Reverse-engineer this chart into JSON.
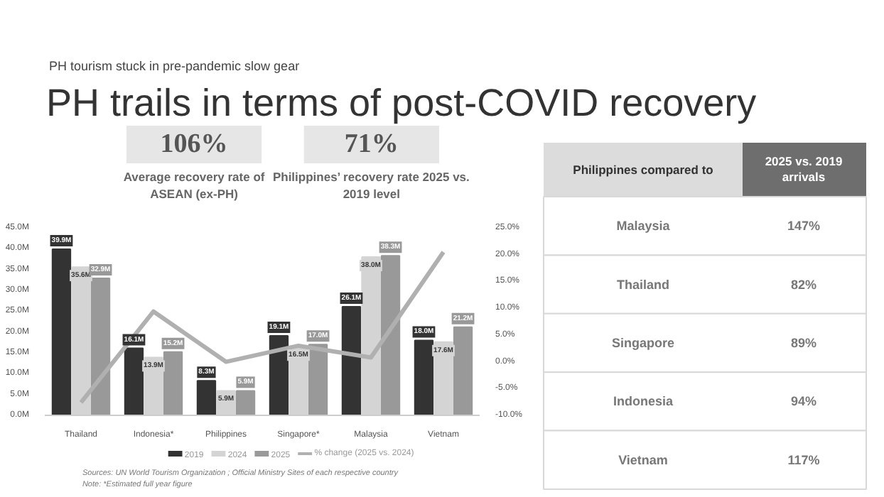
{
  "chart_data": [
    {
      "type": "other",
      "subtitle": "PH tourism stuck in pre-pandemic slow gear",
      "title": "PH trails in terms of post-COVID recovery",
      "annotations": [
        "106%",
        "Average recovery rate of ASEAN (ex-PH)",
        "71%",
        "Philippines’ recovery rate 2025 vs. 2019 level"
      ]
    },
    {
      "type": "bar",
      "categories": [
        "Thailand",
        "Indonesia*",
        "Philippines",
        "Singapore*",
        "Malaysia",
        "Vietnam"
      ],
      "series": [
        {
          "name": "2019",
          "color": "#333333",
          "values": [
            39.9,
            16.1,
            8.3,
            19.1,
            26.1,
            18.0
          ],
          "value_labels": [
            "39.9M",
            "16.1M",
            "8.3M",
            "19.1M",
            "26.1M",
            "18.0M"
          ]
        },
        {
          "name": "2024",
          "color": "#d4d4d4",
          "values": [
            35.6,
            13.9,
            5.9,
            16.5,
            38.0,
            17.6
          ],
          "value_labels": [
            "35.6M",
            "13.9M",
            "5.9M",
            "16.5M",
            "38.0M",
            "17.6M"
          ]
        },
        {
          "name": "2025",
          "color": "#999999",
          "values": [
            32.9,
            15.2,
            5.9,
            17.0,
            38.3,
            21.2
          ],
          "value_labels": [
            "32.9M",
            "15.2M",
            "5.9M",
            "17.0M",
            "38.3M",
            "21.2M"
          ]
        },
        {
          "name": "% change (2025 vs. 2024)",
          "type": "line",
          "axis": "y2",
          "color": "#b0b0b0",
          "values": [
            -7.6,
            9.4,
            0.0,
            3.0,
            0.8,
            20.5
          ]
        }
      ],
      "ylim": [
        0,
        45
      ],
      "yticks": [
        {
          "value": 0,
          "label": "0.0M"
        },
        {
          "value": 5,
          "label": "5.0M"
        },
        {
          "value": 10,
          "label": "10.0M"
        },
        {
          "value": 15,
          "label": "15.0M"
        },
        {
          "value": 20,
          "label": "20.0M"
        },
        {
          "value": 25,
          "label": "25.0M"
        },
        {
          "value": 30,
          "label": "30.0M"
        },
        {
          "value": 35,
          "label": "35.0M"
        },
        {
          "value": 40,
          "label": "40.0M"
        },
        {
          "value": 45,
          "label": "45.0M"
        }
      ],
      "y2lim": [
        -10,
        25
      ],
      "y2ticks": [
        {
          "value": -10,
          "label": "-10.0%"
        },
        {
          "value": -5,
          "label": "-5.0%"
        },
        {
          "value": 0,
          "label": "0.0%"
        },
        {
          "value": 5,
          "label": "5.0%"
        },
        {
          "value": 10,
          "label": "10.0%"
        },
        {
          "value": 15,
          "label": "15.0%"
        },
        {
          "value": 20,
          "label": "20.0%"
        },
        {
          "value": 25,
          "label": "25.0%"
        }
      ],
      "grid": false,
      "legend": "bottom",
      "annotations": [
        "Sources: UN World Tourism Organization ; Official Ministry Sites of each respective country",
        "Note: *Estimated full year figure"
      ]
    },
    {
      "type": "other",
      "annotations": [
        "Philippines compared to",
        "2025 vs. 2019 arrivals"
      ],
      "categories": [
        "Malaysia",
        "Thailand",
        "Singapore",
        "Indonesia",
        "Vietnam"
      ],
      "value_labels": [
        "147%",
        "82%",
        "89%",
        "94%",
        "117%"
      ]
    }
  ]
}
